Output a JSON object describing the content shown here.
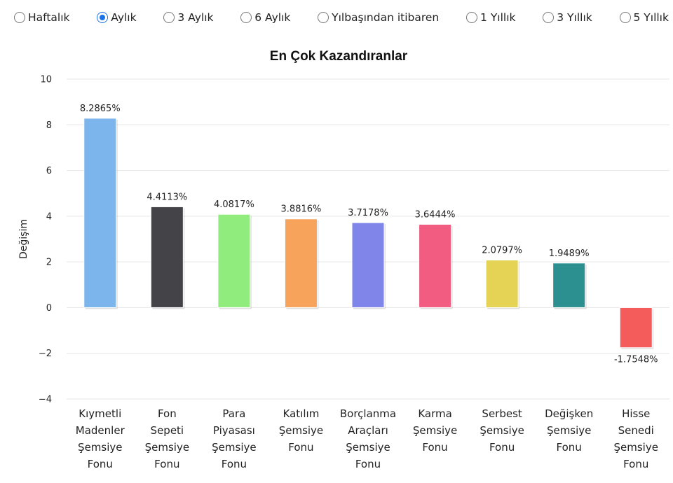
{
  "period_options": [
    {
      "label": "Haftalık",
      "checked": false
    },
    {
      "label": "Aylık",
      "checked": true
    },
    {
      "label": "3 Aylık",
      "checked": false
    },
    {
      "label": "6 Aylık",
      "checked": false
    },
    {
      "label": "Yılbaşından itibaren",
      "checked": false
    },
    {
      "label": "1 Yıllık",
      "checked": false
    },
    {
      "label": "3 Yıllık",
      "checked": false
    },
    {
      "label": "5 Yıllık",
      "checked": false
    }
  ],
  "chart_data": {
    "type": "bar",
    "title": "En Çok Kazandıranlar",
    "xlabel": "",
    "ylabel": "Değişim",
    "ylim": [
      -4,
      10
    ],
    "yticks": [
      10,
      8,
      6,
      4,
      2,
      0,
      -2,
      -4
    ],
    "grid": true,
    "categories": [
      [
        "Kıymetli",
        "Madenler",
        "Şemsiye",
        "Fonu"
      ],
      [
        "Fon",
        "Sepeti",
        "Şemsiye",
        "Fonu"
      ],
      [
        "Para",
        "Piyasası",
        "Şemsiye",
        "Fonu"
      ],
      [
        "Katılım",
        "Şemsiye",
        "Fonu"
      ],
      [
        "Borçlanma",
        "Araçları",
        "Şemsiye",
        "Fonu"
      ],
      [
        "Karma",
        "Şemsiye",
        "Fonu"
      ],
      [
        "Serbest",
        "Şemsiye",
        "Fonu"
      ],
      [
        "Değişken",
        "Şemsiye",
        "Fonu"
      ],
      [
        "Hisse",
        "Senedi",
        "Şemsiye",
        "Fonu"
      ]
    ],
    "values": [
      8.2865,
      4.4113,
      4.0817,
      3.8816,
      3.7178,
      3.6444,
      2.0797,
      1.9489,
      -1.7548
    ],
    "data_labels": [
      "8.2865%",
      "4.4113%",
      "4.0817%",
      "3.8816%",
      "3.7178%",
      "3.6444%",
      "2.0797%",
      "1.9489%",
      "-1.7548%"
    ],
    "colors": [
      "#7cb5ec",
      "#434348",
      "#90ed7d",
      "#f7a35c",
      "#8085e9",
      "#f15c80",
      "#e4d354",
      "#2b908f",
      "#f45b5b"
    ]
  }
}
